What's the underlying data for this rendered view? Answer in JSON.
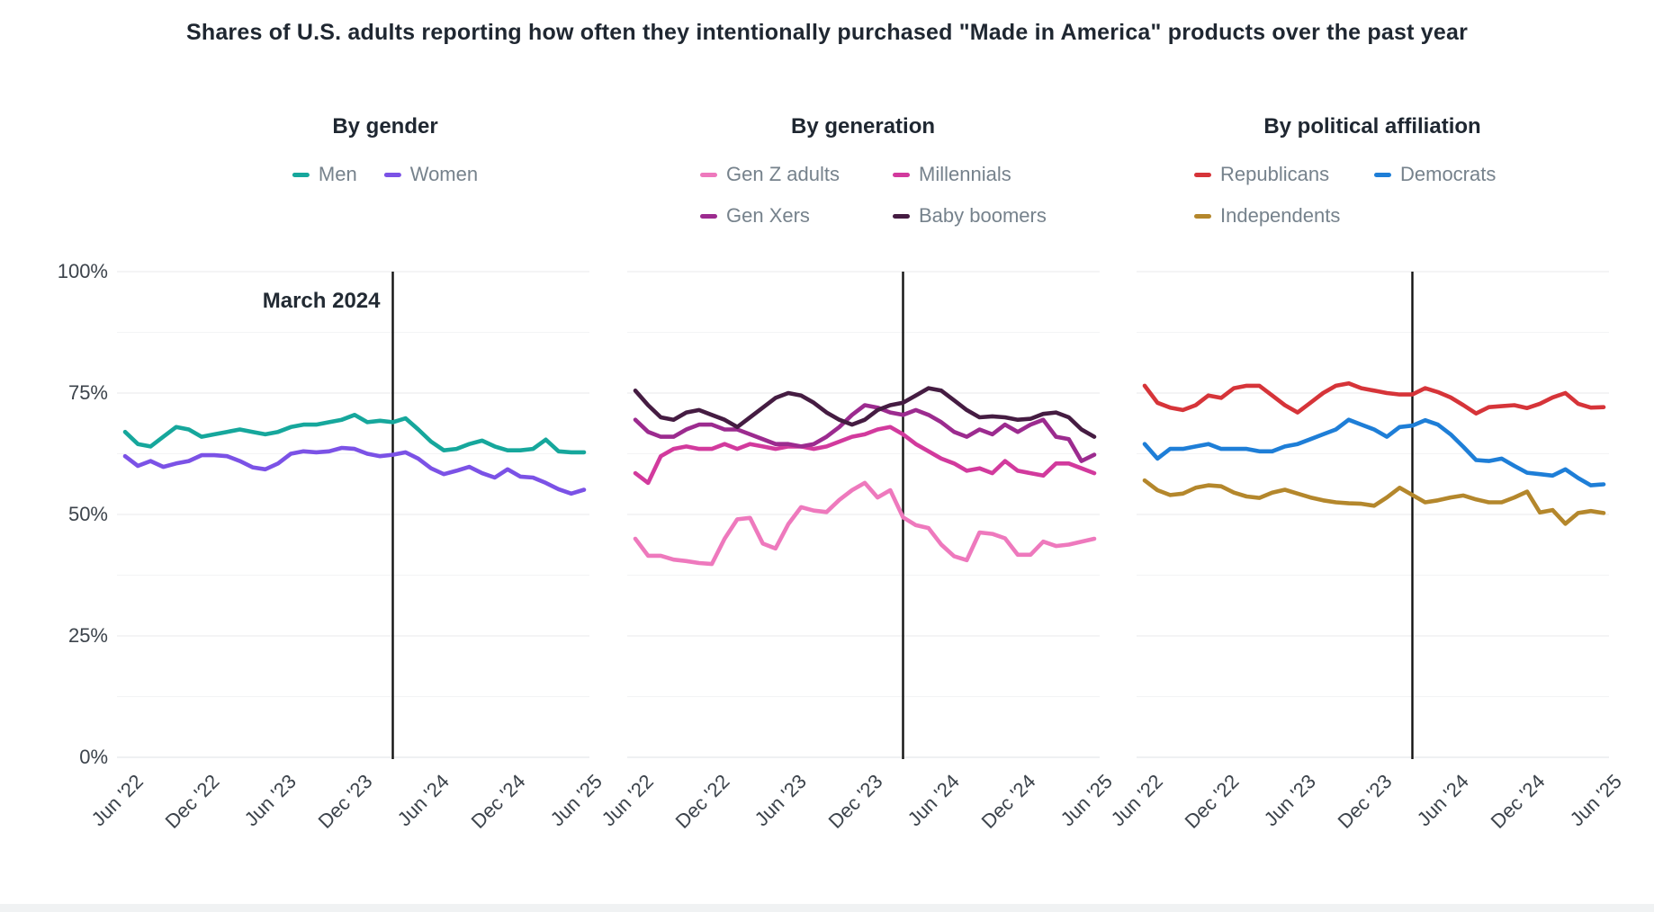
{
  "title": "Shares of U.S. adults reporting how often they intentionally purchased \"Made in America\" products over the past year",
  "annotation": {
    "label": "March 2024"
  },
  "y_axis": {
    "tick_labels": [
      "100%",
      "75%",
      "50%",
      "25%",
      "0%"
    ],
    "tick_values": [
      100,
      75,
      50,
      25,
      0
    ]
  },
  "x_axis": {
    "tick_labels": [
      "Jun '22",
      "Dec '22",
      "Jun '23",
      "Dec '23",
      "Jun '24",
      "Dec '24",
      "Jun '25"
    ],
    "interval_months": 6
  },
  "chart_data": [
    {
      "type": "line",
      "title": "By gender",
      "x_range": "Jun 2022 to Jun 2025, monthly (37 points)",
      "ylim": [
        0,
        100
      ],
      "grid": "major 25% / minor 12.5%",
      "annotation_label": "March 2024",
      "annotation_month_index": 21,
      "series": [
        {
          "name": "Men",
          "color": "#16a79c",
          "values": [
            67,
            64.5,
            64,
            66,
            68,
            67.5,
            66,
            66.5,
            67,
            67.5,
            67,
            66.5,
            67,
            68,
            68.5,
            68.5,
            69,
            69.5,
            70.5,
            69,
            69.3,
            69,
            69.8,
            67.5,
            65,
            63.2,
            63.5,
            64.5,
            65.2,
            64,
            63.2,
            63.2,
            63.5,
            65.4,
            63,
            62.8,
            62.8
          ]
        },
        {
          "name": "Women",
          "color": "#7b52e6",
          "values": [
            62,
            60,
            61,
            59.8,
            60.5,
            61,
            62.2,
            62.2,
            62,
            61,
            59.7,
            59.3,
            60.5,
            62.5,
            63,
            62.8,
            63,
            63.7,
            63.5,
            62.5,
            62,
            62.3,
            62.8,
            61.5,
            59.5,
            58.3,
            59,
            59.8,
            58.5,
            57.6,
            59.3,
            57.8,
            57.6,
            56.5,
            55.2,
            54.3,
            55.1
          ]
        }
      ]
    },
    {
      "type": "line",
      "title": "By generation",
      "x_range": "Jun 2022 to Jun 2025, monthly (37 points)",
      "ylim": [
        0,
        100
      ],
      "grid": "major 25% / minor 12.5%",
      "annotation_label": "March 2024",
      "annotation_month_index": 21,
      "series": [
        {
          "name": "Gen Z adults",
          "color": "#ee79bd",
          "values": [
            45,
            41.5,
            41.5,
            40.7,
            40.4,
            40,
            39.8,
            45,
            49,
            49.3,
            44,
            43,
            48,
            51.5,
            50.8,
            50.5,
            53,
            55,
            56.5,
            53.5,
            55,
            49.4,
            47.8,
            47.2,
            43.8,
            41.4,
            40.6,
            46.3,
            46,
            45.1,
            41.7,
            41.7,
            44.4,
            43.5,
            43.8,
            44.4,
            45
          ]
        },
        {
          "name": "Millennials",
          "color": "#d23a9d",
          "values": [
            58.5,
            56.5,
            62,
            63.5,
            64,
            63.5,
            63.5,
            64.5,
            63.5,
            64.5,
            64,
            63.5,
            64,
            64,
            63.5,
            64,
            65,
            66,
            66.5,
            67.5,
            68,
            66.5,
            64.5,
            63,
            61.5,
            60.5,
            59,
            59.5,
            58.5,
            61,
            59,
            58.5,
            58,
            60.5,
            60.5,
            59.5,
            58.5
          ]
        },
        {
          "name": "Gen Xers",
          "color": "#9c2b8f",
          "values": [
            69.5,
            67,
            66,
            66,
            67.5,
            68.5,
            68.5,
            67.5,
            67.5,
            66.5,
            65.5,
            64.5,
            64.5,
            64,
            64.5,
            66,
            68,
            70.5,
            72.5,
            72,
            71,
            70.5,
            71.5,
            70.5,
            69,
            67,
            66,
            67.5,
            66.5,
            68.5,
            67,
            68.5,
            69.5,
            66,
            65.5,
            61,
            62.3
          ]
        },
        {
          "name": "Baby boomers",
          "color": "#451c42",
          "values": [
            75.5,
            72.5,
            70,
            69.5,
            71,
            71.5,
            70.5,
            69.5,
            68,
            70,
            72,
            74,
            75,
            74.5,
            73,
            71,
            69.5,
            68.5,
            69.5,
            71.5,
            72.5,
            73,
            74.5,
            76,
            75.5,
            73.5,
            71.5,
            70,
            70.2,
            70,
            69.5,
            69.7,
            70.7,
            71,
            70,
            67.5,
            66
          ]
        }
      ]
    },
    {
      "type": "line",
      "title": "By political affiliation",
      "x_range": "Jun 2022 to Jun 2025, monthly (37 points)",
      "ylim": [
        0,
        100
      ],
      "grid": "major 25% / minor 12.5%",
      "annotation_label": "March 2024",
      "annotation_month_index": 21,
      "series": [
        {
          "name": "Republicans",
          "color": "#d63439",
          "values": [
            76.5,
            73,
            72,
            71.5,
            72.5,
            74.5,
            74,
            76,
            76.5,
            76.5,
            74.5,
            72.5,
            71,
            73,
            75,
            76.5,
            77,
            76,
            75.5,
            75,
            74.7,
            74.7,
            76,
            75.2,
            74.1,
            72.5,
            70.8,
            72.1,
            72.3,
            72.5,
            71.9,
            72.8,
            74.1,
            75,
            72.8,
            72,
            72.1
          ]
        },
        {
          "name": "Independents",
          "color": "#b4872c",
          "values": [
            57,
            55,
            54,
            54.3,
            55.5,
            56,
            55.8,
            54.5,
            53.7,
            53.4,
            54.5,
            55.1,
            54.3,
            53.5,
            52.9,
            52.5,
            52.3,
            52.2,
            51.8,
            53.5,
            55.5,
            54,
            52.5,
            52.9,
            53.5,
            53.9,
            53.1,
            52.5,
            52.5,
            53.5,
            54.7,
            50.4,
            50.9,
            48.1,
            50.3,
            50.7,
            50.3
          ]
        },
        {
          "name": "Democrats",
          "color": "#1e7ed7",
          "values": [
            64.5,
            61.5,
            63.5,
            63.5,
            64,
            64.5,
            63.5,
            63.5,
            63.5,
            63,
            63,
            64,
            64.5,
            65.5,
            66.5,
            67.5,
            69.5,
            68.5,
            67.5,
            66,
            68,
            68.3,
            69.4,
            68.5,
            66.5,
            63.9,
            61.2,
            61,
            61.5,
            60,
            58.6,
            58.3,
            58,
            59.3,
            57.5,
            56,
            56.2
          ]
        }
      ]
    }
  ]
}
